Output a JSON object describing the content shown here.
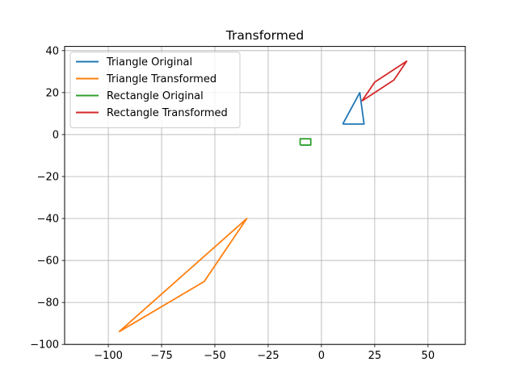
{
  "chart_data": {
    "type": "line",
    "title": "Transformed",
    "xlabel": "",
    "ylabel": "",
    "xlim": [
      -120.5,
      67.5
    ],
    "ylim": [
      -100,
      42
    ],
    "grid": true,
    "legend_position": "top-left",
    "x_ticks": [
      -100,
      -75,
      -50,
      -25,
      0,
      25,
      50
    ],
    "x_tick_labels": [
      "−100",
      "−75",
      "−50",
      "−25",
      "0",
      "25",
      "50"
    ],
    "y_ticks": [
      -100,
      -80,
      -60,
      -40,
      -20,
      0,
      20,
      40
    ],
    "y_tick_labels": [
      "−100",
      "−80",
      "−60",
      "−40",
      "−20",
      "0",
      "20",
      "40"
    ],
    "series": [
      {
        "name": "Triangle Original",
        "color": "#1f77b4",
        "x": [
          10,
          20,
          18,
          10
        ],
        "y": [
          5,
          5,
          20,
          5
        ]
      },
      {
        "name": "Triangle Transformed",
        "color": "#ff7f0e",
        "x": [
          -95,
          -55,
          -35,
          -95
        ],
        "y": [
          -94,
          -70,
          -40,
          -94
        ]
      },
      {
        "name": "Rectangle Original",
        "color": "#2ca02c",
        "x": [
          -10,
          -5,
          -5,
          -10,
          -10
        ],
        "y": [
          -5,
          -5,
          -2,
          -2,
          -5
        ]
      },
      {
        "name": "Rectangle Transformed",
        "color": "#d62728",
        "x": [
          19,
          34,
          40,
          25,
          19
        ],
        "y": [
          16,
          26,
          35,
          25,
          16
        ]
      }
    ]
  }
}
